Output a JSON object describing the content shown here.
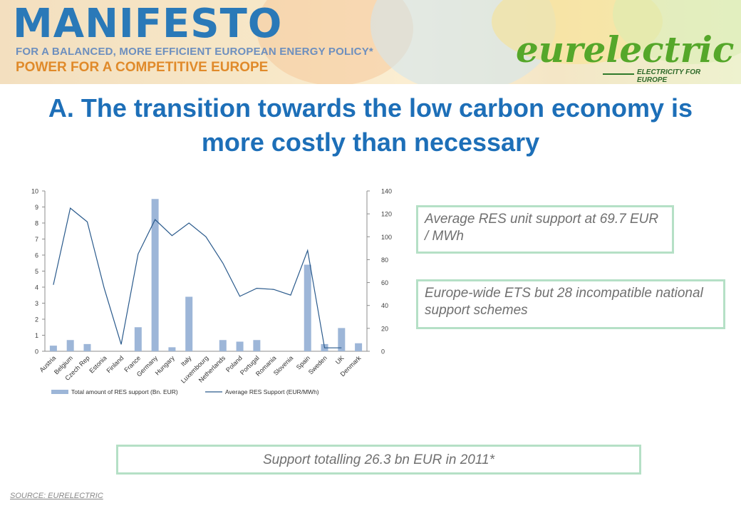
{
  "brand": {
    "title": "MANIFESTO",
    "subtitle_1": "FOR A BALANCED, MORE EFFICIENT EUROPEAN ENERGY POLICY*",
    "subtitle_2": "POWER FOR A COMPETITIVE EUROPE",
    "logo_text": "eurelectric",
    "logo_tagline": "ELECTRICITY FOR EUROPE"
  },
  "headline": "A. The transition towards the low carbon economy is more costly than necessary",
  "callouts": {
    "res_unit_support": "Average RES unit support at 69.7 EUR / MWh",
    "ets_schemes": "Europe-wide ETS but 28 incompatible national support schemes",
    "support_total": "Support totalling 26.3 bn EUR in 2011*"
  },
  "source": "SOURCE: EURELECTRIC",
  "colors": {
    "brand_blue": "#2a79b8",
    "headline_blue": "#1d6fb8",
    "bar_fill": "#9db6d8",
    "line_color": "#2a5a8c",
    "callout_border": "#b5e0c6",
    "logo_green": "#55a72a",
    "subtitle_orange": "#e08a2a"
  },
  "chart_data": {
    "type": "bar",
    "categories": [
      "Austria",
      "Belgium",
      "Czech Rep",
      "Estonia",
      "Finland",
      "France",
      "Germany",
      "Hungary",
      "Italy",
      "Luxembourg",
      "Netherlands",
      "Poland",
      "Portugal",
      "Romania",
      "Slovenia",
      "Spain",
      "Sweden",
      "UK",
      "Denmark"
    ],
    "series": [
      {
        "name": "Total amount of RES support (Bn. EUR)",
        "type": "bar",
        "axis": "left",
        "values": [
          0.35,
          0.7,
          0.45,
          0,
          0,
          1.5,
          9.5,
          0.25,
          3.4,
          0,
          0.7,
          0.6,
          0.7,
          0,
          0,
          5.4,
          0.45,
          1.45,
          0.5
        ]
      },
      {
        "name": "Average RES Support (EUR/MWh)",
        "type": "line",
        "axis": "right",
        "values": [
          58,
          125,
          113,
          55,
          6,
          85,
          115,
          101,
          112,
          100,
          77,
          48,
          55,
          54,
          49,
          88,
          3,
          3,
          null
        ]
      }
    ],
    "y_left": {
      "min": 0,
      "max": 10,
      "ticks": [
        "0",
        "1",
        "2",
        "3",
        "4",
        "5",
        "6",
        "7",
        "8",
        "9",
        "10"
      ]
    },
    "y_right": {
      "min": 0,
      "max": 140,
      "ticks": [
        "0",
        "20",
        "40",
        "60",
        "80",
        "100",
        "120",
        "140"
      ]
    },
    "grid": false,
    "legend": "bottom"
  }
}
